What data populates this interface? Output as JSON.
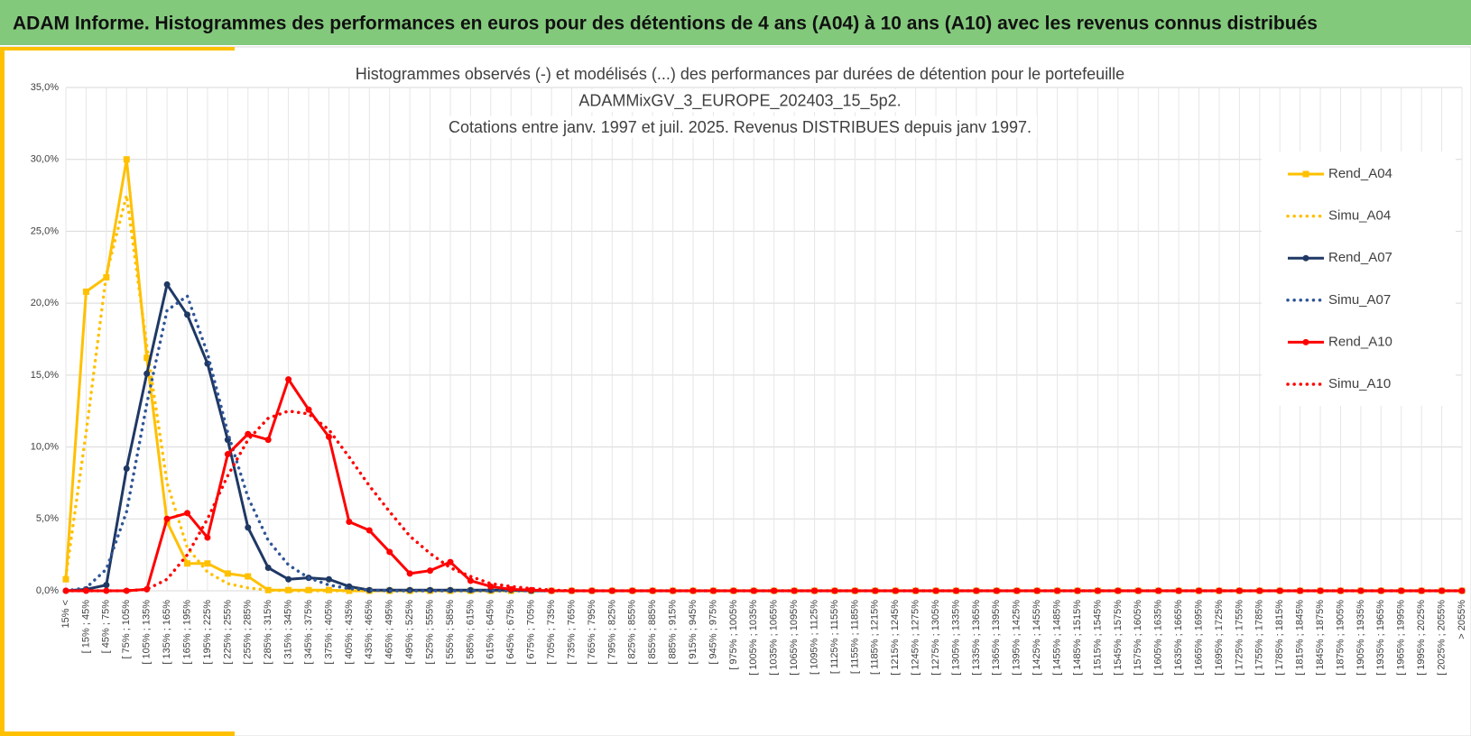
{
  "header": {
    "title": "ADAM Informe. Histogrammes des performances en euros pour des détentions de 4 ans (A04) à 10 ans (A10) avec les revenus connus distribués"
  },
  "chart_data": {
    "type": "line",
    "title": [
      "Histogrammes observés (-) et modélisés (...) des performances par durées de détention pour  le portefeuille",
      "ADAMMixGV_3_EUROPE_202403_15_5p2.",
      "Cotations entre janv. 1997 et juil. 2025. Revenus DISTRIBUES depuis janv 1997."
    ],
    "categories": [
      "15% <",
      "[ 15% ; 45%",
      "[ 45% ; 75%",
      "[ 75% ; 105%",
      "[ 105% ; 135%",
      "[ 135% ; 165%",
      "[ 165% ; 195%",
      "[ 195% ; 225%",
      "[ 225% ; 255%",
      "[ 255% ; 285%",
      "[ 285% ; 315%",
      "[ 315% ; 345%",
      "[ 345% ; 375%",
      "[ 375% ; 405%",
      "[ 405% ; 435%",
      "[ 435% ; 465%",
      "[ 465% ; 495%",
      "[ 495% ; 525%",
      "[ 525% ; 555%",
      "[ 555% ; 585%",
      "[ 585% ; 615%",
      "[ 615% ; 645%",
      "[ 645% ; 675%",
      "[ 675% ; 705%",
      "[ 705% ; 735%",
      "[ 735% ; 765%",
      "[ 765% ; 795%",
      "[ 795% ; 825%",
      "[ 825% ; 855%",
      "[ 855% ; 885%",
      "[ 885% ; 915%",
      "[ 915% ; 945%",
      "[ 945% ; 975%",
      "[ 975% ; 1005%",
      "[ 1005% ; 1035%",
      "[ 1035% ; 1065%",
      "[ 1065% ; 1095%",
      "[ 1095% ; 1125%",
      "[ 1125% ; 1155%",
      "[ 1155% ; 1185%",
      "[ 1185% ; 1215%",
      "[ 1215% ; 1245%",
      "[ 1245% ; 1275%",
      "[ 1275% ; 1305%",
      "[ 1305% ; 1335%",
      "[ 1335% ; 1365%",
      "[ 1365% ; 1395%",
      "[ 1395% ; 1425%",
      "[ 1425% ; 1455%",
      "[ 1455% ; 1485%",
      "[ 1485% ; 1515%",
      "[ 1515% ; 1545%",
      "[ 1545% ; 1575%",
      "[ 1575% ; 1605%",
      "[ 1605% ; 1635%",
      "[ 1635% ; 1665%",
      "[ 1665% ; 1695%",
      "[ 1695% ; 1725%",
      "[ 1725% ; 1755%",
      "[ 1755% ; 1785%",
      "[ 1785% ; 1815%",
      "[ 1815% ; 1845%",
      "[ 1845% ; 1875%",
      "[ 1875% ; 1905%",
      "[ 1905% ; 1935%",
      "[ 1935% ; 1965%",
      "[ 1965% ; 1995%",
      "[ 1995% ; 2025%",
      "[ 2025% ; 2055%",
      "> 2055%"
    ],
    "series": [
      {
        "name": "Rend_A04",
        "color": "#FFC000",
        "style": "solid",
        "marker": "square",
        "values": [
          0.8,
          20.8,
          21.8,
          30.0,
          16.2,
          4.8,
          1.9,
          1.9,
          1.2,
          1.0,
          0.05,
          0.05,
          0.05,
          0.05,
          0,
          0,
          0,
          0,
          0,
          0,
          0,
          0,
          0,
          0,
          0,
          0,
          0,
          0,
          0,
          0,
          0,
          0,
          0,
          0,
          0,
          0,
          0,
          0,
          0,
          0,
          0,
          0,
          0,
          0,
          0,
          0,
          0,
          0,
          0,
          0,
          0,
          0,
          0,
          0,
          0,
          0,
          0,
          0,
          0,
          0,
          0,
          0,
          0,
          0,
          0,
          0,
          0,
          0,
          0,
          0
        ]
      },
      {
        "name": "Simu_A04",
        "color": "#FFC000",
        "style": "dotted",
        "marker": null,
        "values": [
          1.0,
          11,
          22,
          27.5,
          17,
          7.5,
          3,
          1.3,
          0.5,
          0.2,
          0.05,
          0,
          0,
          0,
          0,
          0,
          0,
          0,
          0,
          0,
          0,
          0,
          0,
          0,
          0,
          0,
          0,
          0,
          0,
          0,
          0,
          0,
          0,
          0,
          0,
          0,
          0,
          0,
          0,
          0,
          0,
          0,
          0,
          0,
          0,
          0,
          0,
          0,
          0,
          0,
          0,
          0,
          0,
          0,
          0,
          0,
          0,
          0,
          0,
          0,
          0,
          0,
          0,
          0,
          0,
          0,
          0,
          0,
          0,
          0
        ]
      },
      {
        "name": "Rend_A07",
        "color": "#1F3864",
        "style": "solid",
        "marker": "circle",
        "values": [
          0,
          0.1,
          0.4,
          8.5,
          15.1,
          21.3,
          19.2,
          15.8,
          10.5,
          4.4,
          1.6,
          0.8,
          0.9,
          0.8,
          0.3,
          0.05,
          0.05,
          0.05,
          0.05,
          0.05,
          0.05,
          0.05,
          0.05,
          0,
          0,
          0,
          0,
          0,
          0,
          0,
          0,
          0,
          0,
          0,
          0,
          0,
          0,
          0,
          0,
          0,
          0,
          0,
          0,
          0,
          0,
          0,
          0,
          0,
          0,
          0,
          0,
          0,
          0,
          0,
          0,
          0,
          0,
          0,
          0,
          0,
          0,
          0,
          0,
          0,
          0,
          0,
          0,
          0,
          0,
          0
        ]
      },
      {
        "name": "Simu_A07",
        "color": "#2F5597",
        "style": "dotted",
        "marker": null,
        "values": [
          0,
          0.2,
          1.5,
          5.5,
          13,
          19.5,
          20.5,
          16.5,
          11,
          6.5,
          3.5,
          1.8,
          0.9,
          0.4,
          0.15,
          0.05,
          0,
          0,
          0,
          0,
          0,
          0,
          0,
          0,
          0,
          0,
          0,
          0,
          0,
          0,
          0,
          0,
          0,
          0,
          0,
          0,
          0,
          0,
          0,
          0,
          0,
          0,
          0,
          0,
          0,
          0,
          0,
          0,
          0,
          0,
          0,
          0,
          0,
          0,
          0,
          0,
          0,
          0,
          0,
          0,
          0,
          0,
          0,
          0,
          0,
          0,
          0,
          0,
          0,
          0
        ]
      },
      {
        "name": "Rend_A10",
        "color": "#FF0000",
        "style": "solid",
        "marker": "circle",
        "values": [
          0,
          0,
          0,
          0,
          0.1,
          5.0,
          5.4,
          3.7,
          9.5,
          10.9,
          10.5,
          14.7,
          12.6,
          10.7,
          4.8,
          4.2,
          2.7,
          1.2,
          1.4,
          2.0,
          0.7,
          0.3,
          0.1,
          0.05,
          0,
          0,
          0,
          0,
          0,
          0,
          0,
          0,
          0,
          0,
          0,
          0,
          0,
          0,
          0,
          0,
          0,
          0,
          0,
          0,
          0,
          0,
          0,
          0,
          0,
          0,
          0,
          0,
          0,
          0,
          0,
          0,
          0,
          0,
          0,
          0,
          0,
          0,
          0,
          0,
          0,
          0,
          0,
          0,
          0,
          0
        ]
      },
      {
        "name": "Simu_A10",
        "color": "#FF0000",
        "style": "dotted",
        "marker": null,
        "values": [
          0,
          0,
          0,
          0,
          0.1,
          0.8,
          2.5,
          5,
          8,
          10.5,
          12,
          12.5,
          12.3,
          11.2,
          9.3,
          7.3,
          5.5,
          3.8,
          2.6,
          1.6,
          1,
          0.5,
          0.3,
          0.15,
          0.05,
          0,
          0,
          0,
          0,
          0,
          0,
          0,
          0,
          0,
          0,
          0,
          0,
          0,
          0,
          0,
          0,
          0,
          0,
          0,
          0,
          0,
          0,
          0,
          0,
          0,
          0,
          0,
          0,
          0,
          0,
          0,
          0,
          0,
          0,
          0,
          0,
          0,
          0,
          0,
          0,
          0,
          0,
          0,
          0,
          0
        ]
      }
    ],
    "ylim": [
      0,
      35
    ],
    "yticks": [
      {
        "value": 0,
        "label": "0,0%"
      },
      {
        "value": 5,
        "label": "5,0%"
      },
      {
        "value": 10,
        "label": "10,0%"
      },
      {
        "value": 15,
        "label": "15,0%"
      },
      {
        "value": 20,
        "label": "20,0%"
      },
      {
        "value": 25,
        "label": "25,0%"
      },
      {
        "value": 30,
        "label": "30,0%"
      },
      {
        "value": 35,
        "label": "35,0%"
      }
    ],
    "grid": true,
    "legend": "right"
  }
}
